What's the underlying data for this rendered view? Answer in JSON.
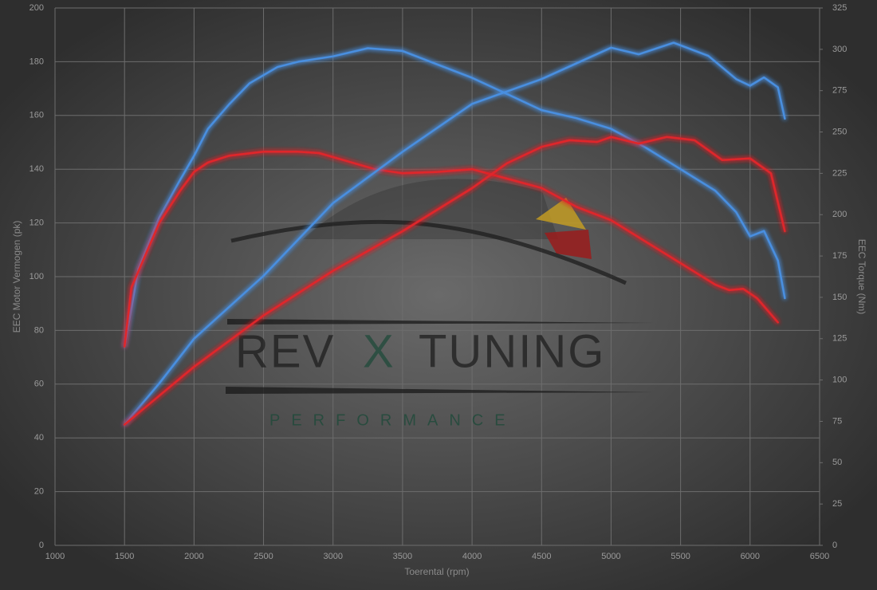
{
  "chart_data": {
    "type": "line",
    "x_label": "Toerental (rpm)",
    "y_label": "EEC Motor Vermogen (pk)",
    "y2_label": "EEC Torque (Nm)",
    "xlim": [
      1000,
      6500
    ],
    "xticks": [
      1000,
      1500,
      2000,
      2500,
      3000,
      3500,
      4000,
      4500,
      5000,
      5500,
      6000,
      6500
    ],
    "ylim": [
      0,
      200
    ],
    "yticks": [
      0,
      20,
      40,
      60,
      80,
      100,
      120,
      140,
      160,
      180,
      200
    ],
    "y2lim": [
      0,
      325
    ],
    "y2ticks": [
      0,
      25,
      50,
      75,
      100,
      125,
      150,
      175,
      200,
      225,
      250,
      275,
      300,
      325
    ],
    "grid": true,
    "watermark": [
      "REV",
      "X",
      "TUNING",
      "PERFORMANCE"
    ],
    "series": [
      {
        "color": "#4a8fe0",
        "axis": "y",
        "x": [
          1500,
          1600,
          1750,
          1900,
          2000,
          2100,
          2250,
          2400,
          2600,
          2750,
          3000,
          3250,
          3500,
          3750,
          4000,
          4250,
          4500,
          4750,
          5000,
          5250,
          5500,
          5750,
          5900,
          6000,
          6100,
          6200,
          6250
        ],
        "values": [
          74,
          103,
          122,
          136,
          145,
          155,
          164,
          172,
          178,
          180,
          182,
          185,
          184,
          179,
          174,
          168,
          162,
          159,
          155,
          148,
          140,
          132,
          124,
          115,
          117,
          106,
          92
        ]
      },
      {
        "color": "#e0262b",
        "axis": "y",
        "x": [
          1500,
          1550,
          1750,
          1900,
          2000,
          2100,
          2250,
          2500,
          2750,
          2900,
          3100,
          3300,
          3500,
          3750,
          4000,
          4250,
          4500,
          4750,
          5000,
          5250,
          5500,
          5750,
          5850,
          5950,
          6050,
          6200
        ],
        "values": [
          74,
          96,
          120,
          132,
          139,
          142.5,
          145,
          146.5,
          146.5,
          146,
          143,
          140,
          138.5,
          139,
          140,
          136.5,
          133,
          126,
          121,
          113,
          105,
          97,
          95,
          95.5,
          92,
          83
        ]
      },
      {
        "color": "#4a8fe0",
        "axis": "y2",
        "x": [
          1500,
          1750,
          2000,
          2500,
          3000,
          3500,
          4000,
          4500,
          5000,
          5200,
          5450,
          5700,
          5900,
          6000,
          6100,
          6200,
          6250
        ],
        "values": [
          73,
          98,
          125,
          163,
          207,
          238,
          267,
          282,
          301,
          297,
          304,
          296,
          282,
          278,
          283,
          277,
          258
        ]
      },
      {
        "color": "#e0262b",
        "axis": "y2",
        "x": [
          1500,
          2000,
          2500,
          3000,
          3500,
          3750,
          4000,
          4250,
          4500,
          4700,
          4900,
          5000,
          5200,
          5400,
          5600,
          5800,
          6000,
          6150,
          6250
        ],
        "values": [
          73,
          108,
          139,
          166,
          190,
          203,
          216,
          231,
          241,
          245,
          244,
          247,
          243,
          247,
          245,
          233,
          234,
          225,
          190
        ]
      }
    ]
  }
}
